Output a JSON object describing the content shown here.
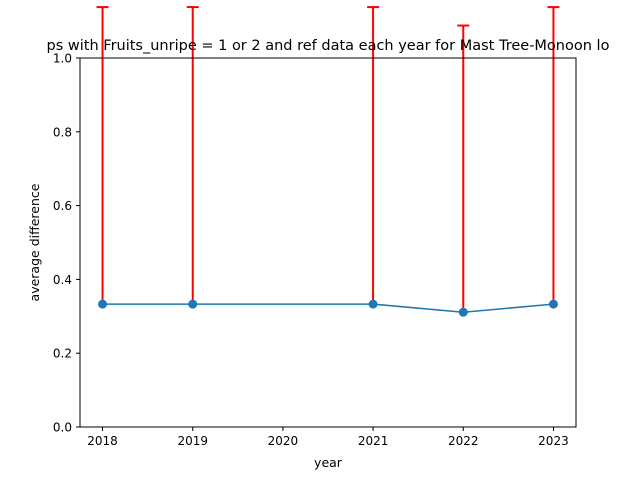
{
  "chart_data": {
    "type": "line",
    "title": "ps with Fruits_unripe = 1 or 2 and ref data each year for Mast Tree-Monoon lo",
    "xlabel": "year",
    "ylabel": "average difference",
    "xlim": [
      2017.75,
      2023.25
    ],
    "ylim": [
      0.0,
      1.0
    ],
    "x_ticks": [
      "2018",
      "2019",
      "2020",
      "2021",
      "2022",
      "2023"
    ],
    "y_ticks": [
      "0.0",
      "0.2",
      "0.4",
      "0.6",
      "0.8",
      "1.0"
    ],
    "grid": false,
    "series": [
      {
        "x": [
          2018,
          2019,
          2021,
          2022,
          2023
        ],
        "y": [
          0.333,
          0.333,
          0.333,
          0.311,
          0.333
        ],
        "error_lower": [
          0.0,
          0.0,
          0.0,
          0.0,
          0.0
        ],
        "error_upper": [
          0.805,
          0.805,
          0.805,
          0.777,
          0.805
        ],
        "color": "#1f77b4",
        "error_color": "#ff0000"
      }
    ]
  }
}
